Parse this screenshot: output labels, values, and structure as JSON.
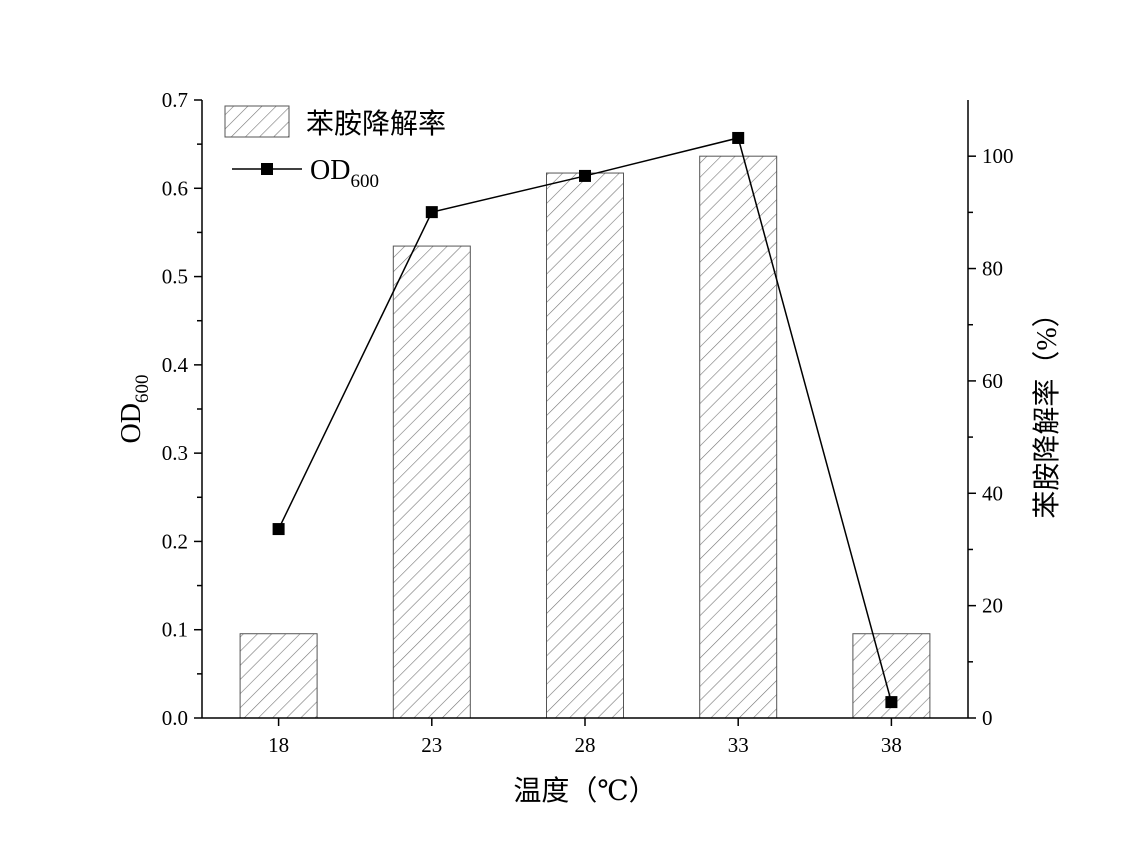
{
  "chart_data": {
    "type": "bar",
    "x_label": "温度（℃）",
    "y_left_label_main": "OD",
    "y_left_label_sub": "600",
    "y_right_label": "苯胺降解率（%）",
    "categories": [
      "18",
      "23",
      "28",
      "33",
      "38"
    ],
    "y_left_range": [
      0,
      0.7
    ],
    "y_left_ticks": [
      "0.0",
      "0.1",
      "0.2",
      "0.3",
      "0.4",
      "0.5",
      "0.6",
      "0.7"
    ],
    "y_right_range": [
      0,
      110
    ],
    "y_right_ticks": [
      "0",
      "20",
      "40",
      "60",
      "80",
      "100"
    ],
    "series": [
      {
        "name": "苯胺降解率",
        "type": "bar",
        "axis": "right",
        "values": [
          15,
          84,
          97,
          100,
          15
        ]
      },
      {
        "name_main": "OD",
        "name_sub": "600",
        "type": "line",
        "axis": "left",
        "values": [
          0.214,
          0.573,
          0.614,
          0.657,
          0.018
        ]
      }
    ],
    "legend_position": "top-left",
    "grid": false
  }
}
